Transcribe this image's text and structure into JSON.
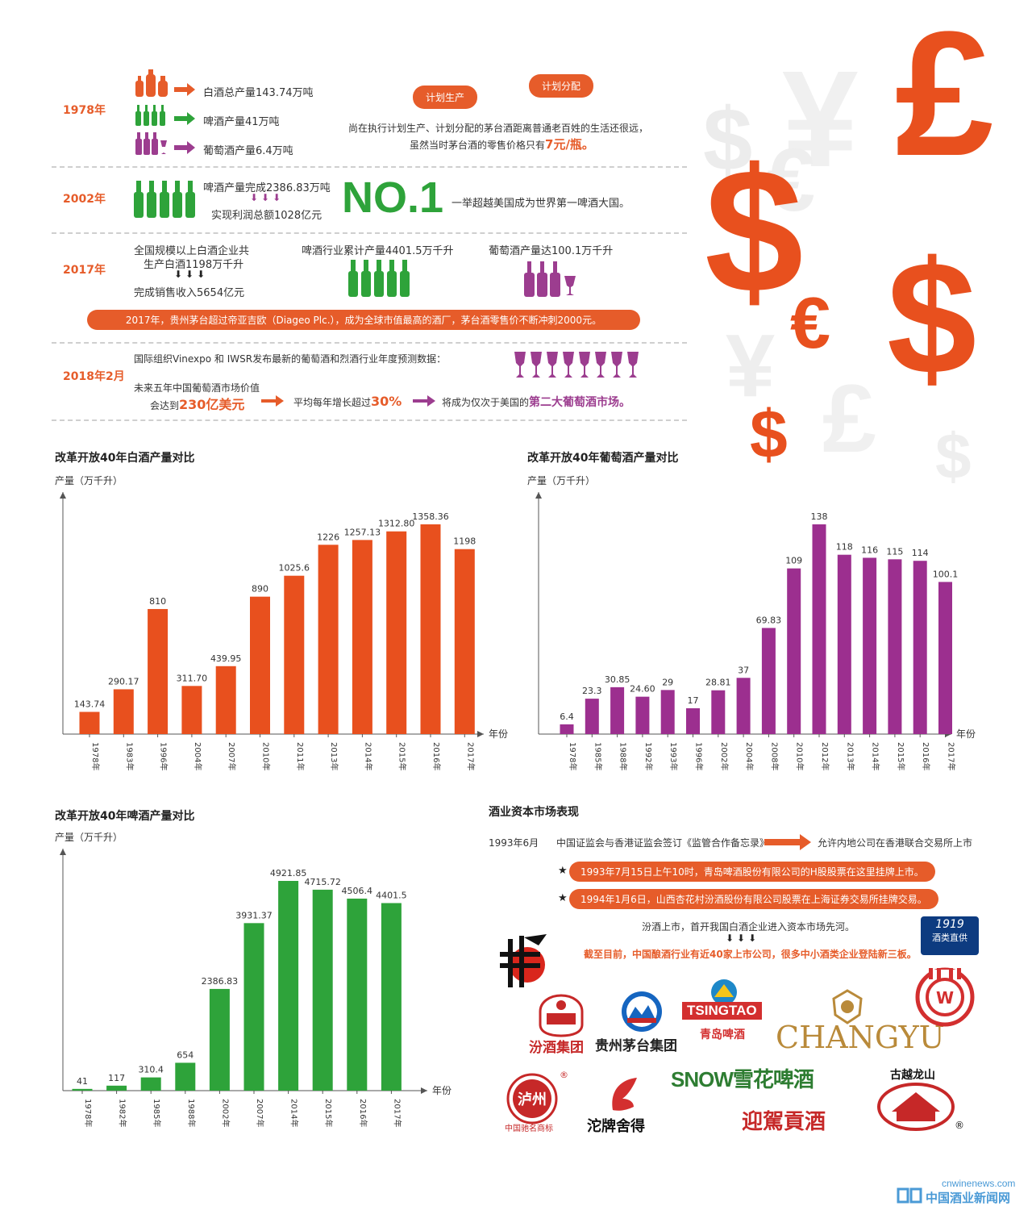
{
  "timeline": {
    "y1978": {
      "year": "1978年",
      "items": [
        "白酒总产量143.74万吨",
        "啤酒产量41万吨",
        "葡萄酒产量6.4万吨"
      ],
      "bubble1": "计划生产",
      "bubble2": "计划分配",
      "note_line1": "尚在执行计划生产、计划分配的茅台酒距离普通老百姓的生活还很远，",
      "note_line2_prefix": "虽然当时茅台酒的零售价格只有",
      "note_line2_price": "7元/瓶。"
    },
    "y2002": {
      "year": "2002年",
      "line1": "啤酒产量完成2386.83万吨",
      "line2": "实现利润总额1028亿元",
      "big": "NO.1",
      "note": "一举超越美国成为世界第一啤酒大国。"
    },
    "y2017": {
      "year": "2017年",
      "left1": "全国规模以上白酒企业共",
      "left2": "生产白酒1198万千升",
      "left3": "完成销售收入5654亿元",
      "mid": "啤酒行业累计产量4401.5万千升",
      "right": "葡萄酒产量达100.1万千升",
      "banner": "2017年，贵州茅台超过帝亚吉欧（Diageo Plc.），成为全球市值最高的酒厂，茅台酒零售价不断冲刺2000元。"
    },
    "y2018": {
      "year": "2018年2月",
      "line1": "国际组织Vinexpo 和 IWSR发布最新的葡萄酒和烈酒行业年度预测数据：",
      "line2": "未来五年中国葡萄酒市场价值",
      "line3_prefix": "会达到",
      "line3_value": "230亿美元",
      "step2_prefix": "平均每年增长超过",
      "step2_value": "30%",
      "step3_prefix": "将成为仅次于美国的",
      "step3_value": "第二大葡萄酒市场。"
    }
  },
  "currency_art": [
    "£",
    "$",
    "€",
    "¥",
    "$",
    "$"
  ],
  "chart_data": [
    {
      "type": "bar",
      "title": "改革开放40年白酒产量对比",
      "ylabel": "产量（万千升）",
      "xlabel": "年份",
      "color": "#e8501e",
      "categories": [
        "1978年",
        "1983年",
        "1996年",
        "2004年",
        "2007年",
        "2010年",
        "2011年",
        "2013年",
        "2014年",
        "2015年",
        "2016年",
        "2017年"
      ],
      "values": [
        143.74,
        290.17,
        810,
        311.7,
        439.95,
        890,
        1025.6,
        1226,
        1257.13,
        1312.8,
        1358.36,
        1198
      ],
      "labels": [
        "143.74",
        "290.17",
        "810",
        "311.70",
        "439.95",
        "890",
        "1025.6",
        "1226",
        "1257.13",
        "1312.80",
        "1358.36",
        "1198"
      ],
      "ylim": [
        0,
        1500
      ]
    },
    {
      "type": "bar",
      "title": "改革开放40年葡萄酒产量对比",
      "ylabel": "产量（万千升）",
      "xlabel": "年份",
      "color": "#9c2f8f",
      "categories": [
        "1978年",
        "1985年",
        "1988年",
        "1992年",
        "1993年",
        "1996年",
        "2002年",
        "2004年",
        "2008年",
        "2010年",
        "2012年",
        "2013年",
        "2014年",
        "2015年",
        "2016年",
        "2017年"
      ],
      "values": [
        6.4,
        23.3,
        30.85,
        24.6,
        29,
        17,
        28.81,
        37,
        69.83,
        109,
        138,
        118,
        116,
        115,
        114,
        100.1
      ],
      "labels": [
        "6.4",
        "23.3",
        "30.85",
        "24.60",
        "29",
        "17",
        "28.81",
        "37",
        "69.83",
        "109",
        "138",
        "118",
        "116",
        "115",
        "114",
        "100.1"
      ],
      "ylim": [
        0,
        150
      ]
    },
    {
      "type": "bar",
      "title": "改革开放40年啤酒产量对比",
      "ylabel": "产量（万千升）",
      "xlabel": "年份",
      "color": "#2ea33a",
      "categories": [
        "1978年",
        "1982年",
        "1985年",
        "1988年",
        "2002年",
        "2007年",
        "2014年",
        "2015年",
        "2016年",
        "2017年"
      ],
      "values": [
        41,
        117,
        310.4,
        654,
        2386.83,
        3931.37,
        4921.85,
        4715.72,
        4506.4,
        4401.5
      ],
      "labels": [
        "41",
        "117",
        "310.4",
        "654",
        "2386.83",
        "3931.37",
        "4921.85",
        "4715.72",
        "4506.4",
        "4401.5"
      ],
      "ylim": [
        0,
        5400
      ]
    }
  ],
  "capital": {
    "title": "酒业资本市场表现",
    "date": "1993年6月",
    "event": "中国证监会与香港证监会签订《监管合作备忘录》",
    "result": "允许内地公司在香港联合交易所上市",
    "star1": "1993年7月15日上午10时，青岛啤酒股份有限公司的H股股票在这里挂牌上市。",
    "star2": "1994年1月6日，山西杏花村汾酒股份有限公司股票在上海证券交易所挂牌交易。",
    "line3": "汾酒上市，首开我国白酒企业进入资本市场先河。",
    "line4": "截至目前，中国酿酒行业有近40家上市公司，很多中小酒类企业登陆新三板。",
    "star_glyph": "★"
  },
  "logos": {
    "fenjiu": "汾酒集团",
    "moutai": "贵州茅台集团",
    "tsingtao_en": "TSINGTAO",
    "tsingtao_cn": "青岛啤酒",
    "changyu": "CHANGYU",
    "wuliangye": "W",
    "luzhou": "泸州",
    "luzhou_sub": "中国驰名商标",
    "tuopai": "沱牌舍得",
    "snow": "SNOW雪花啤酒",
    "yinjia": "迎駕貢酒",
    "guyue_top": "古越龙山",
    "jiuxian_num": "1919",
    "jiuxian": "酒类直供",
    "reg": "®"
  },
  "watermark": {
    "url": "cnwinenews.com",
    "name": "中国酒业新闻网"
  }
}
